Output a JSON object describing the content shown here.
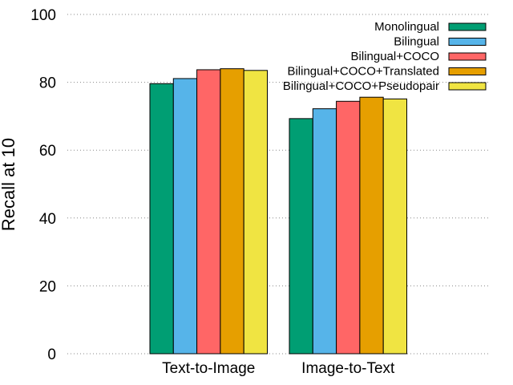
{
  "chart_data": {
    "type": "bar",
    "title": "",
    "xlabel": "",
    "ylabel": "Recall at 10",
    "ylim": [
      0,
      100
    ],
    "yticks": [
      "0",
      "20",
      "40",
      "60",
      "80",
      "100"
    ],
    "grid": true,
    "legend_position": "top-right",
    "categories": [
      "Text-to-Image",
      "Image-to-Text"
    ],
    "series": [
      {
        "name": "Monolingual",
        "color": "#009e73",
        "values": [
          79.6,
          69.3
        ]
      },
      {
        "name": "Bilingual",
        "color": "#56b4e9",
        "values": [
          81.1,
          72.2
        ]
      },
      {
        "name": "Bilingual+COCO",
        "color": "#ff6666",
        "values": [
          83.7,
          74.4
        ]
      },
      {
        "name": "Bilingual+COCO+Translated",
        "color": "#e69f00",
        "values": [
          84.0,
          75.6
        ]
      },
      {
        "name": "Bilingual+COCO+Pseudopair",
        "color": "#f0e442",
        "values": [
          83.5,
          75.1
        ]
      }
    ]
  }
}
